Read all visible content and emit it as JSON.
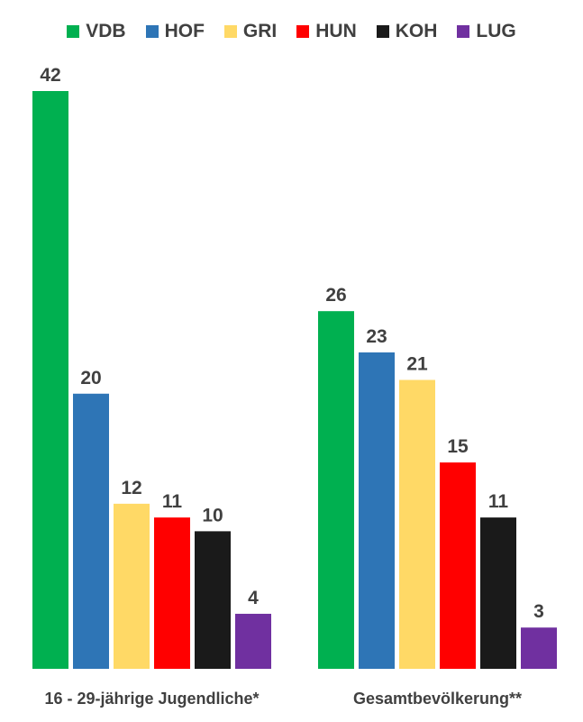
{
  "chart_data": {
    "type": "bar",
    "categories": [
      "16 - 29-jährige Jugendliche*",
      "Gesamtbevölkerung**"
    ],
    "series": [
      {
        "name": "VDB",
        "color": "#00B050",
        "values": [
          42,
          26
        ]
      },
      {
        "name": "HOF",
        "color": "#2E75B6",
        "values": [
          20,
          23
        ]
      },
      {
        "name": "GRI",
        "color": "#FFD966",
        "values": [
          12,
          21
        ]
      },
      {
        "name": "HUN",
        "color": "#FF0000",
        "values": [
          11,
          15
        ]
      },
      {
        "name": "KOH",
        "color": "#1A1A1A",
        "values": [
          10,
          11
        ]
      },
      {
        "name": "LUG",
        "color": "#7030A0",
        "values": [
          4,
          3
        ]
      }
    ],
    "ylim": [
      0,
      42
    ],
    "legend": "top",
    "grid": false,
    "data_labels": true
  }
}
